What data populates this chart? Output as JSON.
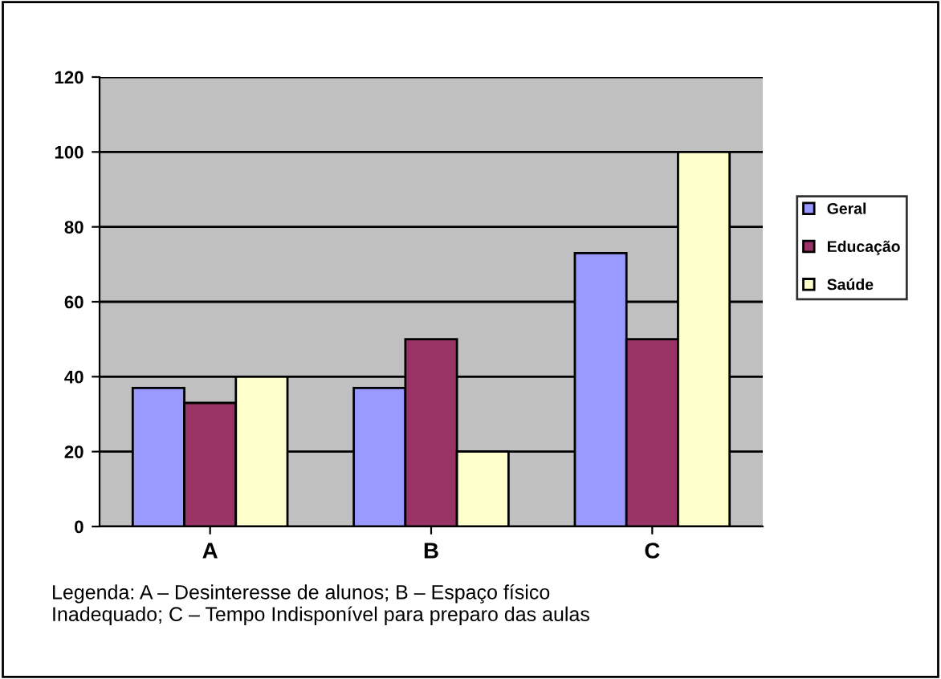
{
  "chart_data": {
    "type": "bar",
    "categories": [
      "A",
      "B",
      "C"
    ],
    "series": [
      {
        "name": "Geral",
        "color": "#9999ff",
        "values": [
          37,
          37,
          73
        ]
      },
      {
        "name": "Educação",
        "color": "#993366",
        "values": [
          33,
          50,
          50
        ]
      },
      {
        "name": "Saúde",
        "color": "#ffffcc",
        "values": [
          40,
          20,
          100
        ]
      }
    ],
    "ylim": [
      0,
      120
    ],
    "yticks": [
      0,
      20,
      40,
      60,
      80,
      100,
      120
    ],
    "grid": "y",
    "legend": "right",
    "annotations": [
      "Legenda: A – Desinteresse de alunos; B – Espaço físico\nInadequado; C – Tempo Indisponível para preparo das aulas"
    ]
  }
}
